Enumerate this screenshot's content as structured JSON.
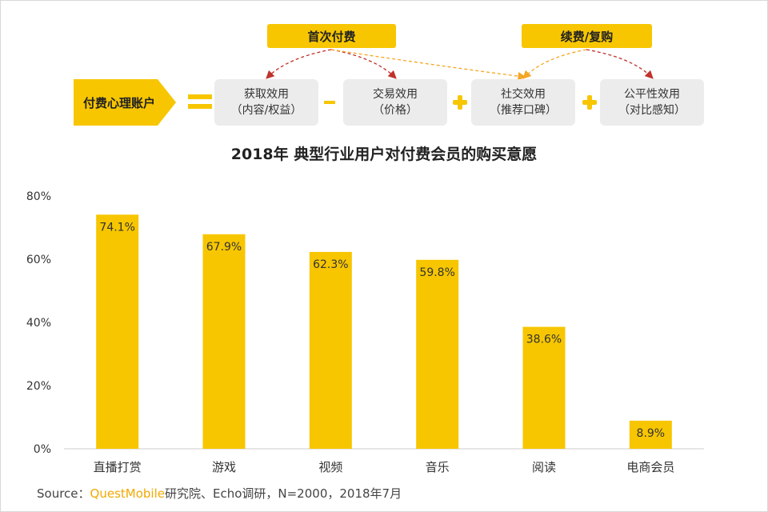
{
  "colors": {
    "accent": "#f7c600",
    "box_bg": "#ececec",
    "arrow_red": "#c0322b",
    "arrow_orange": "#f5a623",
    "bar": "#f7c600"
  },
  "diagram": {
    "first_pay_label": "首次付费",
    "renew_label": "续费/复购",
    "account_label": "付费心理账户",
    "boxes": [
      {
        "line1": "获取效用",
        "line2": "（内容/权益）"
      },
      {
        "line1": "交易效用",
        "line2": "（价格）"
      },
      {
        "line1": "社交效用",
        "line2": "（推荐口碑）"
      },
      {
        "line1": "公平性效用",
        "line2": "（对比感知）"
      }
    ]
  },
  "chart_data": {
    "type": "bar",
    "title": "2018年 典型行业用户对付费会员的购买意愿",
    "categories": [
      "直播打赏",
      "游戏",
      "视频",
      "音乐",
      "阅读",
      "电商会员"
    ],
    "values": [
      74.1,
      67.9,
      62.3,
      59.8,
      38.6,
      8.9
    ],
    "value_labels": [
      "74.1%",
      "67.9%",
      "62.3%",
      "59.8%",
      "38.6%",
      "8.9%"
    ],
    "ylim": [
      0,
      80
    ],
    "yticks": [
      0,
      20,
      40,
      60,
      80
    ],
    "ytick_labels": [
      "0%",
      "20%",
      "40%",
      "60%",
      "80%"
    ],
    "grid": false,
    "xlabel": "",
    "ylabel": ""
  },
  "source": {
    "prefix": "Source：",
    "brand": "QuestMobile",
    "rest": "研究院、Echo调研，N=2000，2018年7月"
  }
}
